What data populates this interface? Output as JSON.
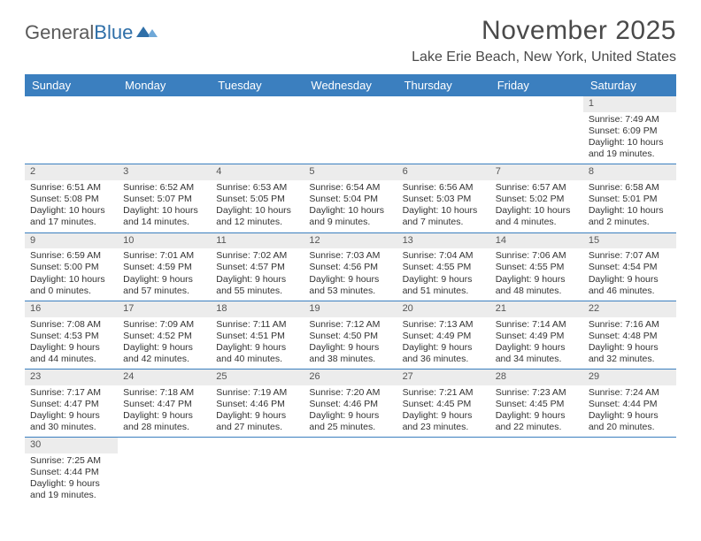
{
  "brand": {
    "part1": "General",
    "part2": "Blue"
  },
  "title": "November 2025",
  "location": "Lake Erie Beach, New York, United States",
  "colors": {
    "header_bg": "#3b7fbf",
    "header_fg": "#ffffff",
    "daynum_bg": "#ececec",
    "rule": "#3b7fbf",
    "text": "#333333",
    "title_text": "#4a4a4a"
  },
  "typography": {
    "month_title_size": 30,
    "location_size": 16,
    "day_header_size": 13,
    "cell_font_size": 10.5
  },
  "day_names": [
    "Sunday",
    "Monday",
    "Tuesday",
    "Wednesday",
    "Thursday",
    "Friday",
    "Saturday"
  ],
  "weeks": [
    [
      null,
      null,
      null,
      null,
      null,
      null,
      {
        "n": "1",
        "sunrise": "7:49 AM",
        "sunset": "6:09 PM",
        "daylight": "10 hours and 19 minutes."
      }
    ],
    [
      {
        "n": "2",
        "sunrise": "6:51 AM",
        "sunset": "5:08 PM",
        "daylight": "10 hours and 17 minutes."
      },
      {
        "n": "3",
        "sunrise": "6:52 AM",
        "sunset": "5:07 PM",
        "daylight": "10 hours and 14 minutes."
      },
      {
        "n": "4",
        "sunrise": "6:53 AM",
        "sunset": "5:05 PM",
        "daylight": "10 hours and 12 minutes."
      },
      {
        "n": "5",
        "sunrise": "6:54 AM",
        "sunset": "5:04 PM",
        "daylight": "10 hours and 9 minutes."
      },
      {
        "n": "6",
        "sunrise": "6:56 AM",
        "sunset": "5:03 PM",
        "daylight": "10 hours and 7 minutes."
      },
      {
        "n": "7",
        "sunrise": "6:57 AM",
        "sunset": "5:02 PM",
        "daylight": "10 hours and 4 minutes."
      },
      {
        "n": "8",
        "sunrise": "6:58 AM",
        "sunset": "5:01 PM",
        "daylight": "10 hours and 2 minutes."
      }
    ],
    [
      {
        "n": "9",
        "sunrise": "6:59 AM",
        "sunset": "5:00 PM",
        "daylight": "10 hours and 0 minutes."
      },
      {
        "n": "10",
        "sunrise": "7:01 AM",
        "sunset": "4:59 PM",
        "daylight": "9 hours and 57 minutes."
      },
      {
        "n": "11",
        "sunrise": "7:02 AM",
        "sunset": "4:57 PM",
        "daylight": "9 hours and 55 minutes."
      },
      {
        "n": "12",
        "sunrise": "7:03 AM",
        "sunset": "4:56 PM",
        "daylight": "9 hours and 53 minutes."
      },
      {
        "n": "13",
        "sunrise": "7:04 AM",
        "sunset": "4:55 PM",
        "daylight": "9 hours and 51 minutes."
      },
      {
        "n": "14",
        "sunrise": "7:06 AM",
        "sunset": "4:55 PM",
        "daylight": "9 hours and 48 minutes."
      },
      {
        "n": "15",
        "sunrise": "7:07 AM",
        "sunset": "4:54 PM",
        "daylight": "9 hours and 46 minutes."
      }
    ],
    [
      {
        "n": "16",
        "sunrise": "7:08 AM",
        "sunset": "4:53 PM",
        "daylight": "9 hours and 44 minutes."
      },
      {
        "n": "17",
        "sunrise": "7:09 AM",
        "sunset": "4:52 PM",
        "daylight": "9 hours and 42 minutes."
      },
      {
        "n": "18",
        "sunrise": "7:11 AM",
        "sunset": "4:51 PM",
        "daylight": "9 hours and 40 minutes."
      },
      {
        "n": "19",
        "sunrise": "7:12 AM",
        "sunset": "4:50 PM",
        "daylight": "9 hours and 38 minutes."
      },
      {
        "n": "20",
        "sunrise": "7:13 AM",
        "sunset": "4:49 PM",
        "daylight": "9 hours and 36 minutes."
      },
      {
        "n": "21",
        "sunrise": "7:14 AM",
        "sunset": "4:49 PM",
        "daylight": "9 hours and 34 minutes."
      },
      {
        "n": "22",
        "sunrise": "7:16 AM",
        "sunset": "4:48 PM",
        "daylight": "9 hours and 32 minutes."
      }
    ],
    [
      {
        "n": "23",
        "sunrise": "7:17 AM",
        "sunset": "4:47 PM",
        "daylight": "9 hours and 30 minutes."
      },
      {
        "n": "24",
        "sunrise": "7:18 AM",
        "sunset": "4:47 PM",
        "daylight": "9 hours and 28 minutes."
      },
      {
        "n": "25",
        "sunrise": "7:19 AM",
        "sunset": "4:46 PM",
        "daylight": "9 hours and 27 minutes."
      },
      {
        "n": "26",
        "sunrise": "7:20 AM",
        "sunset": "4:46 PM",
        "daylight": "9 hours and 25 minutes."
      },
      {
        "n": "27",
        "sunrise": "7:21 AM",
        "sunset": "4:45 PM",
        "daylight": "9 hours and 23 minutes."
      },
      {
        "n": "28",
        "sunrise": "7:23 AM",
        "sunset": "4:45 PM",
        "daylight": "9 hours and 22 minutes."
      },
      {
        "n": "29",
        "sunrise": "7:24 AM",
        "sunset": "4:44 PM",
        "daylight": "9 hours and 20 minutes."
      }
    ],
    [
      {
        "n": "30",
        "sunrise": "7:25 AM",
        "sunset": "4:44 PM",
        "daylight": "9 hours and 19 minutes."
      },
      null,
      null,
      null,
      null,
      null,
      null
    ]
  ],
  "labels": {
    "sunrise": "Sunrise:",
    "sunset": "Sunset:",
    "daylight": "Daylight:"
  }
}
